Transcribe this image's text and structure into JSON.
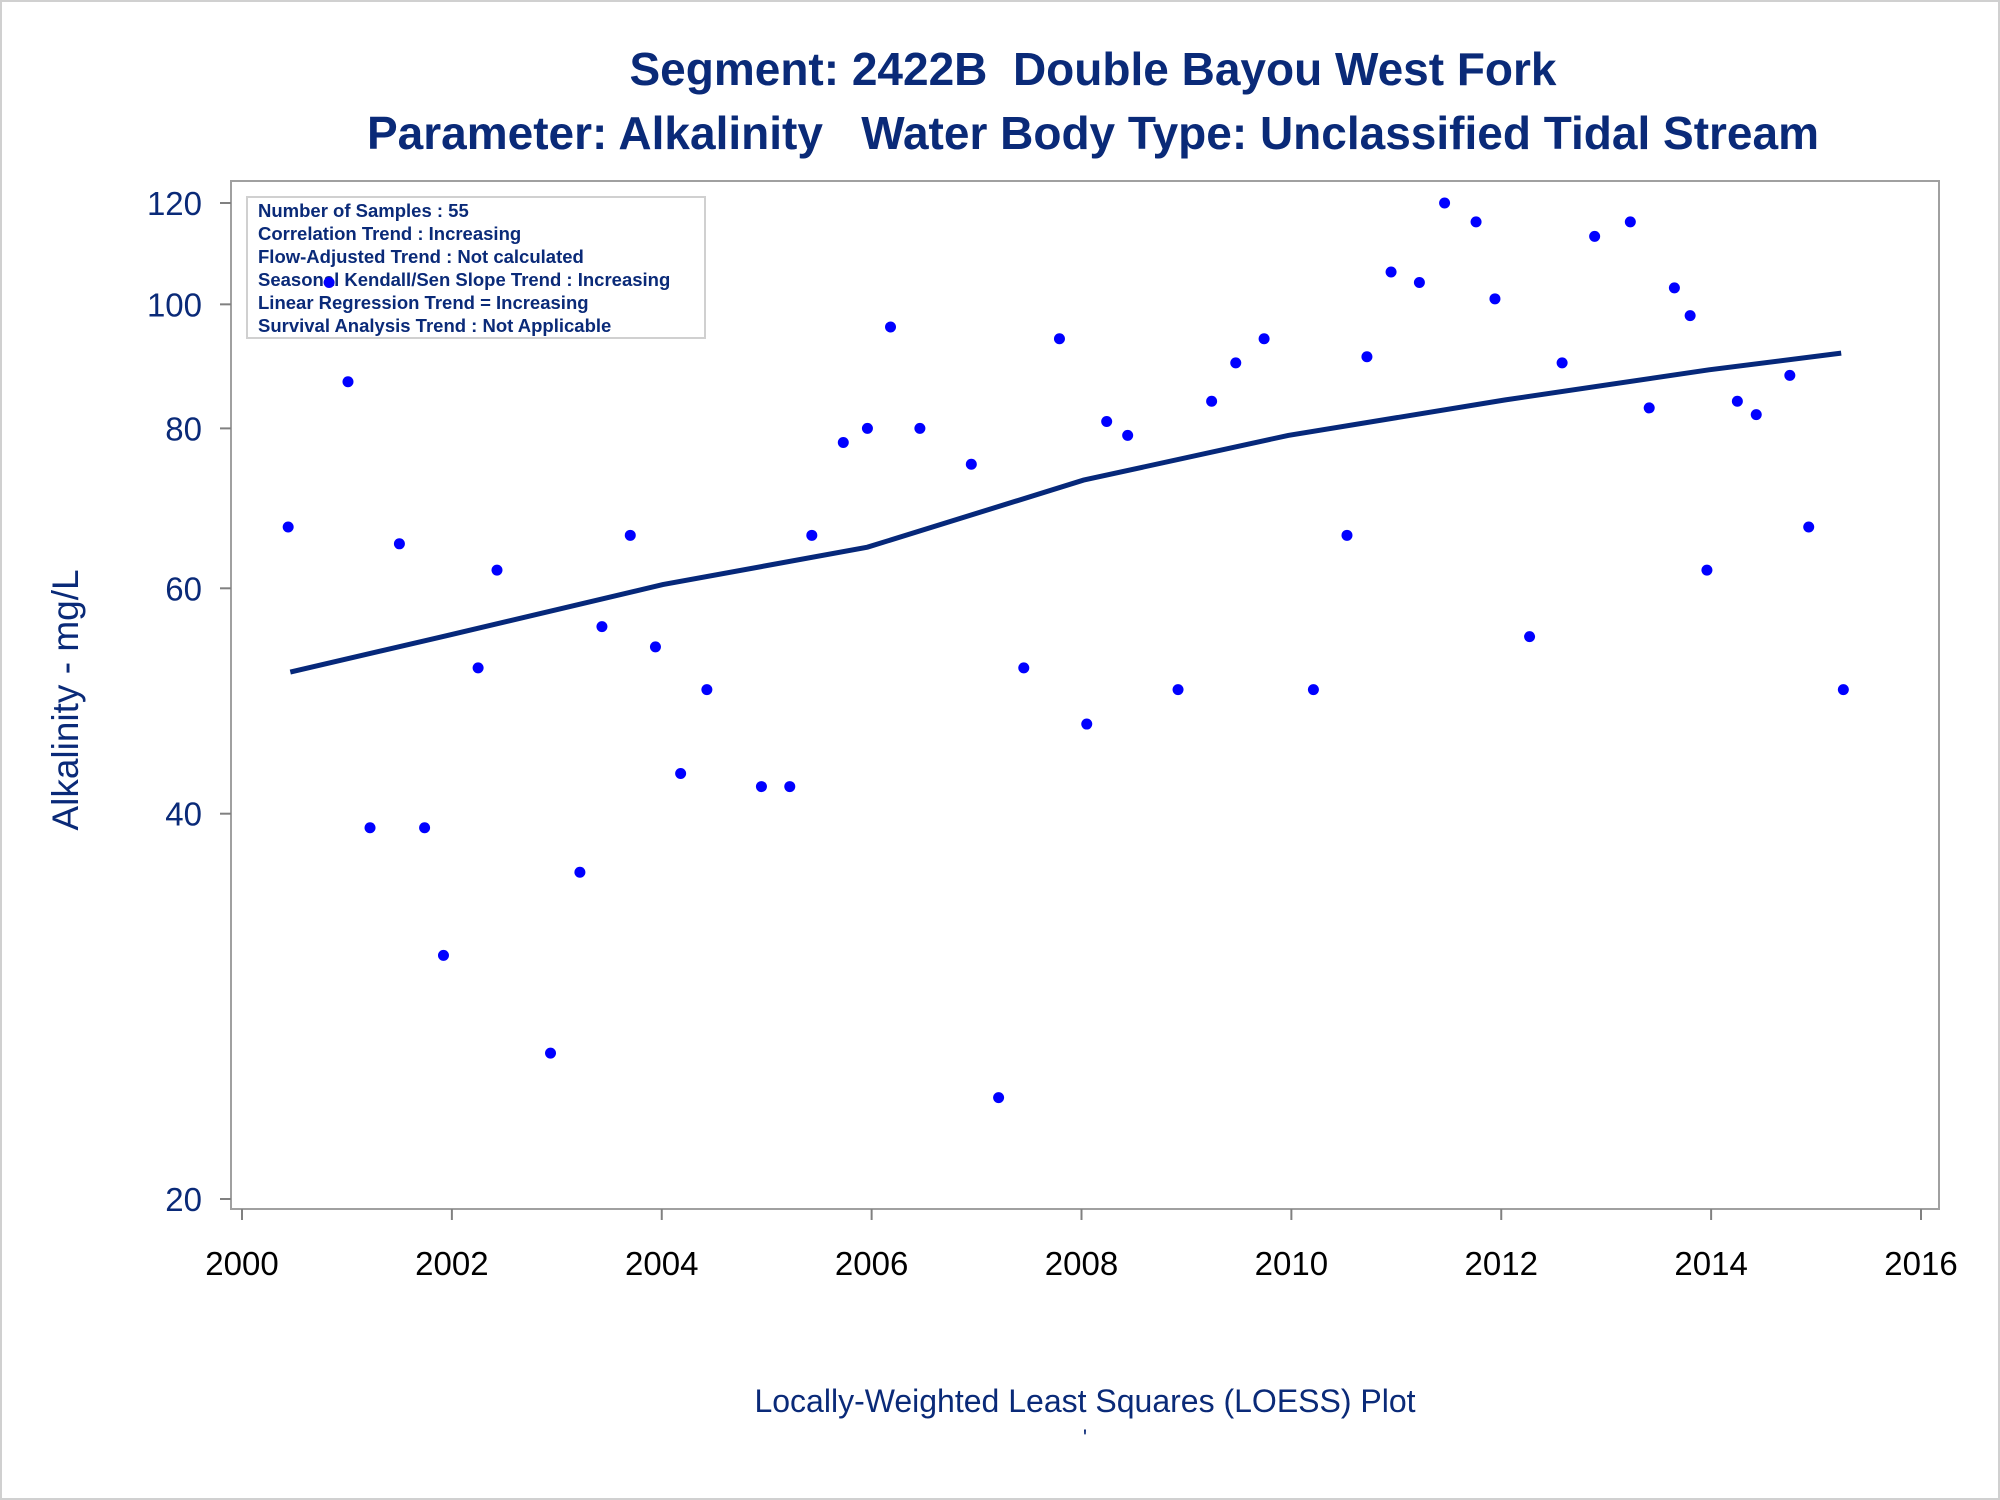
{
  "chart_data": {
    "type": "scatter",
    "title": "Segment: 2422B  Double Bayou West Fork",
    "subtitle": "Parameter: Alkalinity   Water Body Type: Unclassified Tidal Stream",
    "xlabel": "",
    "ylabel": "Alkalinity - mg/L",
    "footnote": "Locally-Weighted Least Squares (LOESS) Plot",
    "footnote_mark": "'",
    "xlim": [
      2000,
      2016
    ],
    "ylim": [
      20,
      120
    ],
    "yscale": "log",
    "x_ticks": [
      "2000",
      "2002",
      "2004",
      "2006",
      "2008",
      "2010",
      "2012",
      "2014",
      "2016"
    ],
    "y_ticks": [
      "20",
      "40",
      "60",
      "80",
      "100",
      "120"
    ],
    "grid": false,
    "colors": {
      "points": "#0000ff",
      "loess": "#06287a",
      "text": "#0a2a78"
    },
    "legend": {
      "placement": "top-left",
      "lines": [
        "Number of Samples : 55",
        "Correlation Trend : Increasing",
        "Flow-Adjusted Trend : Not calculated",
        "Seasonal Kendall/Sen Slope Trend : Increasing",
        "Linear Regression Trend = Increasing",
        "Survival Analysis Trend : Not Applicable"
      ]
    },
    "series": [
      {
        "name": "Samples",
        "type": "scatter",
        "x": [
          2000.44,
          2000.83,
          2001.01,
          2001.22,
          2001.5,
          2001.74,
          2001.92,
          2002.25,
          2002.43,
          2002.94,
          2003.22,
          2003.43,
          2003.7,
          2003.94,
          2004.18,
          2004.43,
          2004.95,
          2005.22,
          2005.43,
          2005.73,
          2005.96,
          2006.18,
          2006.46,
          2006.95,
          2007.21,
          2007.45,
          2007.79,
          2008.05,
          2008.24,
          2008.44,
          2008.92,
          2009.24,
          2009.47,
          2009.74,
          2010.21,
          2010.53,
          2010.72,
          2010.95,
          2011.22,
          2011.46,
          2011.76,
          2011.94,
          2012.27,
          2012.58,
          2012.89,
          2013.23,
          2013.41,
          2013.65,
          2013.8,
          2013.96,
          2014.25,
          2014.43,
          2014.75,
          2014.93,
          2015.26
        ],
        "y": [
          67,
          104,
          87,
          39,
          65,
          39,
          31,
          52,
          62,
          26,
          36,
          56,
          66,
          54,
          43,
          50,
          42,
          42,
          66,
          78,
          80,
          96,
          80,
          75,
          24,
          52,
          94,
          47,
          81,
          79,
          50,
          84,
          90,
          94,
          50,
          66,
          91,
          106,
          104,
          120,
          116,
          101,
          55,
          90,
          113,
          116,
          83,
          103,
          98,
          62,
          84,
          82,
          88,
          67,
          50
        ]
      },
      {
        "name": "LOESS",
        "type": "line",
        "x": [
          2000.46,
          2001.95,
          2004.01,
          2005.96,
          2008.02,
          2009.97,
          2012.04,
          2013.98,
          2015.24
        ],
        "y": [
          51.6,
          55.1,
          60.4,
          64.6,
          72.9,
          79.0,
          84.2,
          88.9,
          91.6
        ]
      }
    ]
  }
}
